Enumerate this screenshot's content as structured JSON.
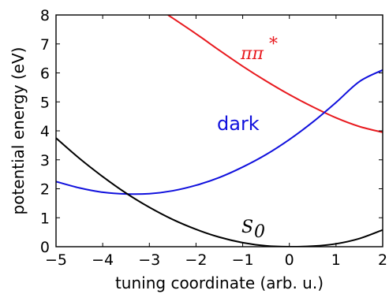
{
  "chart_data": {
    "type": "line",
    "xlabel": "tuning coordinate (arb. u.)",
    "ylabel": "potential energy (eV)",
    "xlim": [
      -5,
      2
    ],
    "ylim": [
      0,
      8
    ],
    "xticks": [
      -5,
      -4,
      -3,
      -2,
      -1,
      0,
      1,
      2
    ],
    "yticks": [
      0,
      1,
      2,
      3,
      4,
      5,
      6,
      7,
      8
    ],
    "grid": false,
    "series": [
      {
        "label_main": "ππ",
        "label_sup": "*",
        "color": "#e8191e",
        "x": [
          -2.6,
          -2.0,
          -1.5,
          -1.0,
          -0.5,
          0.0,
          0.5,
          1.0,
          1.5,
          2.0
        ],
        "y": [
          8.0,
          7.35,
          6.78,
          6.23,
          5.72,
          5.25,
          4.83,
          4.45,
          4.15,
          3.95
        ]
      },
      {
        "label_main": "dark",
        "label_sup": "",
        "color": "#1010dd",
        "x": [
          -5.0,
          -4.5,
          -4.0,
          -3.5,
          -3.0,
          -2.5,
          -2.0,
          -1.5,
          -1.0,
          -0.5,
          0.0,
          0.5,
          1.0,
          1.5,
          2.0
        ],
        "y": [
          2.25,
          2.03,
          1.88,
          1.82,
          1.83,
          1.93,
          2.12,
          2.39,
          2.75,
          3.18,
          3.7,
          4.3,
          4.98,
          5.7,
          6.1
        ]
      },
      {
        "label_main": "S",
        "label_sub": "0",
        "color": "#000000",
        "x": [
          -5.0,
          -4.5,
          -4.0,
          -3.5,
          -3.0,
          -2.5,
          -2.0,
          -1.5,
          -1.0,
          -0.5,
          0.0,
          0.5,
          1.0,
          1.5,
          2.0
        ],
        "y": [
          3.75,
          3.05,
          2.42,
          1.85,
          1.36,
          0.94,
          0.6,
          0.33,
          0.14,
          0.03,
          0.0,
          0.02,
          0.1,
          0.28,
          0.58
        ]
      }
    ]
  }
}
